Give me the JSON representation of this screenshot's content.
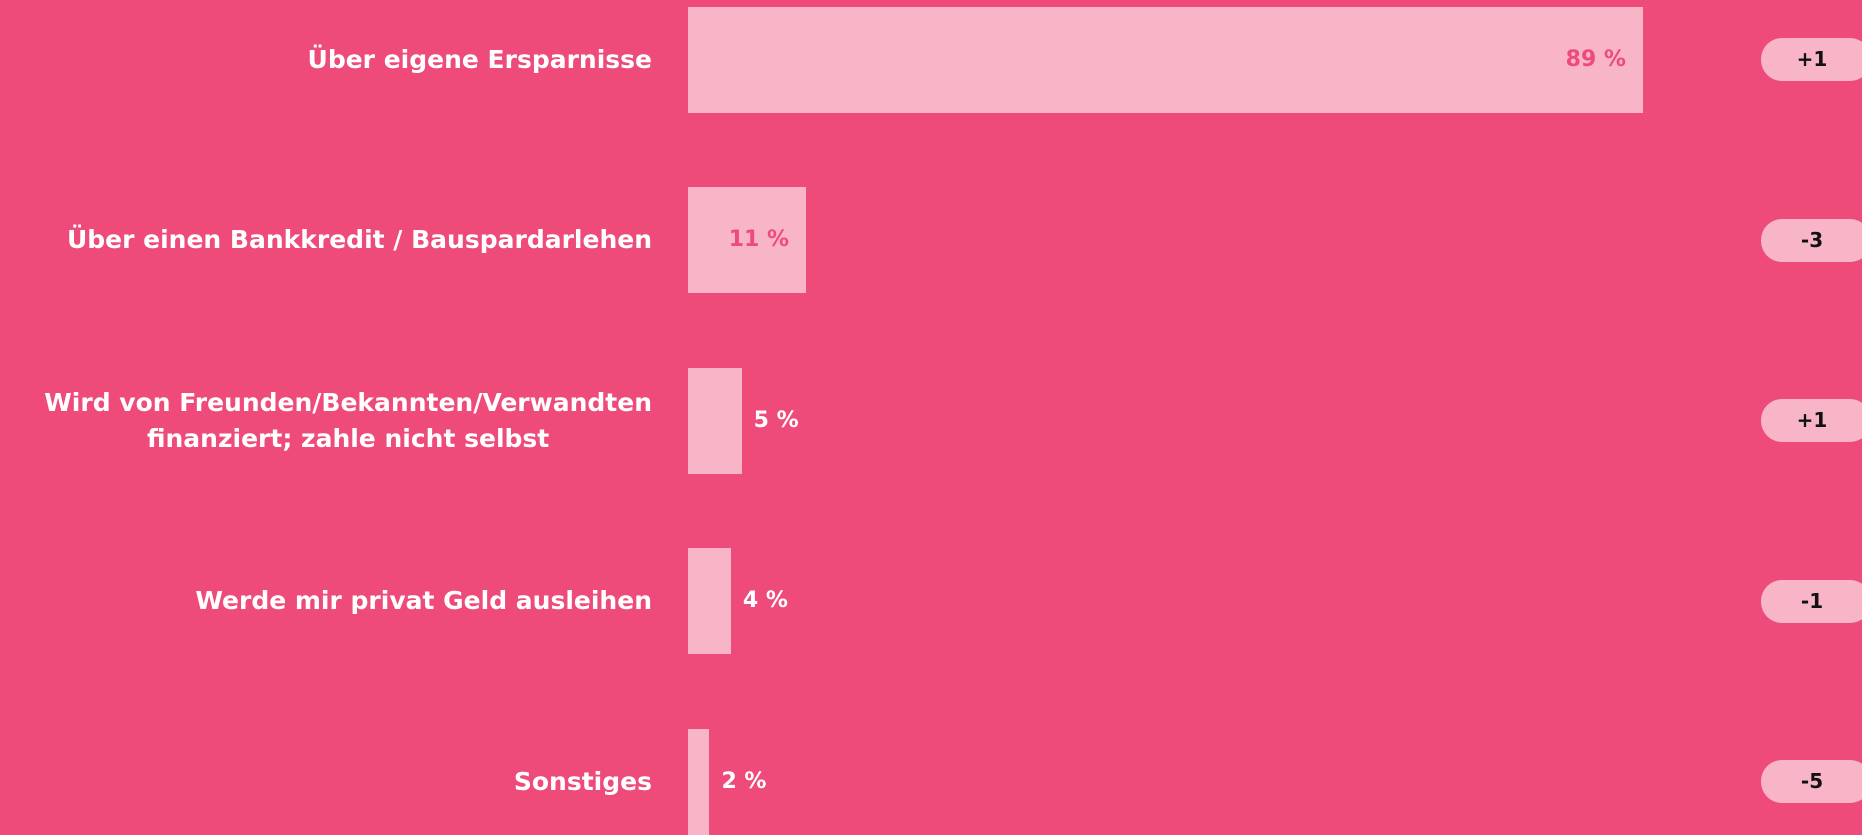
{
  "chart_data": {
    "type": "bar",
    "categories": [
      "Über eigene Ersparnisse",
      "Über einen Bankkredit / Bauspardarlehen",
      "Wird von Freunden/Bekannten/Verwandten\nfinanziert; zahle nicht selbst",
      "Werde mir privat Geld ausleihen",
      "Sonstiges"
    ],
    "values": [
      89,
      11,
      5,
      4,
      2
    ],
    "value_labels": [
      "89 %",
      "11 %",
      "5 %",
      "4 %",
      "2 %"
    ],
    "changes": [
      "+1",
      "-3",
      "+1",
      "-1",
      "-5"
    ],
    "color": "#f8b5c7"
  }
}
